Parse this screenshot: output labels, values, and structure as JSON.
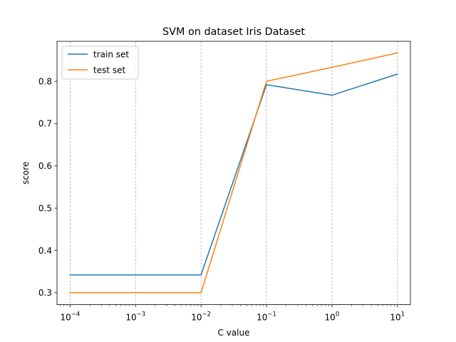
{
  "chart_data": {
    "type": "line",
    "title": "SVM on dataset Iris Dataset",
    "xlabel": "C value",
    "ylabel": "score",
    "xscale": "log",
    "x": [
      0.0001,
      0.001,
      0.01,
      0.1,
      1,
      10
    ],
    "x_tick_labels": [
      {
        "base": "10",
        "exp": "−4"
      },
      {
        "base": "10",
        "exp": "−3"
      },
      {
        "base": "10",
        "exp": "−2"
      },
      {
        "base": "10",
        "exp": "−1"
      },
      {
        "base": "10",
        "exp": "0"
      },
      {
        "base": "10",
        "exp": "1"
      }
    ],
    "y_ticks": [
      0.3,
      0.4,
      0.5,
      0.6,
      0.7,
      0.8
    ],
    "y_tick_labels": [
      "0.3",
      "0.4",
      "0.5",
      "0.6",
      "0.7",
      "0.8"
    ],
    "xlim": [
      6.3e-05,
      15.8
    ],
    "ylim": [
      0.2717,
      0.8945
    ],
    "grid": "vertical dashed",
    "legend_position": "top-left",
    "series": [
      {
        "name": "train set",
        "color": "#1f77b4",
        "values": [
          0.342,
          0.342,
          0.342,
          0.792,
          0.767,
          0.817
        ]
      },
      {
        "name": "test set",
        "color": "#ff7f0e",
        "values": [
          0.3,
          0.3,
          0.3,
          0.8,
          0.833,
          0.867
        ]
      }
    ]
  }
}
